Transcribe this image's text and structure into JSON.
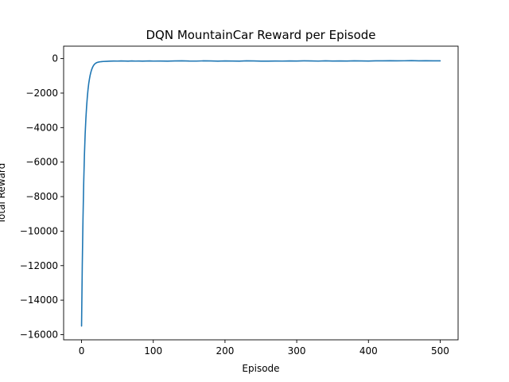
{
  "chart_data": {
    "type": "line",
    "title": "DQN MountainCar Reward per Episode",
    "xlabel": "Episode",
    "ylabel": "Total Reward",
    "xlim": [
      -25,
      525
    ],
    "ylim": [
      -16300,
      720
    ],
    "xticks": [
      0,
      100,
      200,
      300,
      400,
      500
    ],
    "yticks": [
      -16000,
      -14000,
      -12000,
      -10000,
      -8000,
      -6000,
      -4000,
      -2000,
      0
    ],
    "grid": false,
    "legend": "none",
    "colors": {
      "series": "#1f77b4",
      "axes": "#000000",
      "background": "#ffffff"
    },
    "series": [
      {
        "color": "#1f77b4",
        "points": [
          [
            0,
            -15500
          ],
          [
            1,
            -12000
          ],
          [
            2,
            -9300
          ],
          [
            3,
            -7200
          ],
          [
            4,
            -5600
          ],
          [
            5,
            -4400
          ],
          [
            6,
            -3500
          ],
          [
            7,
            -2800
          ],
          [
            8,
            -2250
          ],
          [
            9,
            -1800
          ],
          [
            10,
            -1450
          ],
          [
            11,
            -1180
          ],
          [
            12,
            -960
          ],
          [
            13,
            -790
          ],
          [
            14,
            -650
          ],
          [
            15,
            -540
          ],
          [
            16,
            -450
          ],
          [
            17,
            -380
          ],
          [
            18,
            -330
          ],
          [
            19,
            -290
          ],
          [
            20,
            -260
          ],
          [
            22,
            -220
          ],
          [
            24,
            -200
          ],
          [
            26,
            -185
          ],
          [
            28,
            -175
          ],
          [
            30,
            -168
          ],
          [
            35,
            -158
          ],
          [
            40,
            -150
          ],
          [
            45,
            -140
          ],
          [
            50,
            -145
          ],
          [
            55,
            -135
          ],
          [
            60,
            -140
          ],
          [
            65,
            -150
          ],
          [
            70,
            -138
          ],
          [
            75,
            -145
          ],
          [
            80,
            -140
          ],
          [
            85,
            -150
          ],
          [
            90,
            -142
          ],
          [
            95,
            -135
          ],
          [
            100,
            -145
          ],
          [
            110,
            -140
          ],
          [
            120,
            -148
          ],
          [
            130,
            -135
          ],
          [
            140,
            -130
          ],
          [
            150,
            -142
          ],
          [
            160,
            -145
          ],
          [
            170,
            -132
          ],
          [
            180,
            -138
          ],
          [
            190,
            -148
          ],
          [
            200,
            -135
          ],
          [
            210,
            -142
          ],
          [
            220,
            -148
          ],
          [
            230,
            -130
          ],
          [
            240,
            -138
          ],
          [
            250,
            -148
          ],
          [
            260,
            -150
          ],
          [
            270,
            -140
          ],
          [
            280,
            -145
          ],
          [
            290,
            -135
          ],
          [
            300,
            -140
          ],
          [
            310,
            -132
          ],
          [
            320,
            -138
          ],
          [
            330,
            -145
          ],
          [
            340,
            -130
          ],
          [
            350,
            -140
          ],
          [
            360,
            -135
          ],
          [
            370,
            -142
          ],
          [
            380,
            -130
          ],
          [
            390,
            -135
          ],
          [
            400,
            -140
          ],
          [
            410,
            -130
          ],
          [
            420,
            -132
          ],
          [
            430,
            -125
          ],
          [
            440,
            -130
          ],
          [
            450,
            -128
          ],
          [
            460,
            -120
          ],
          [
            470,
            -130
          ],
          [
            480,
            -125
          ],
          [
            490,
            -130
          ],
          [
            500,
            -132
          ]
        ]
      }
    ]
  }
}
